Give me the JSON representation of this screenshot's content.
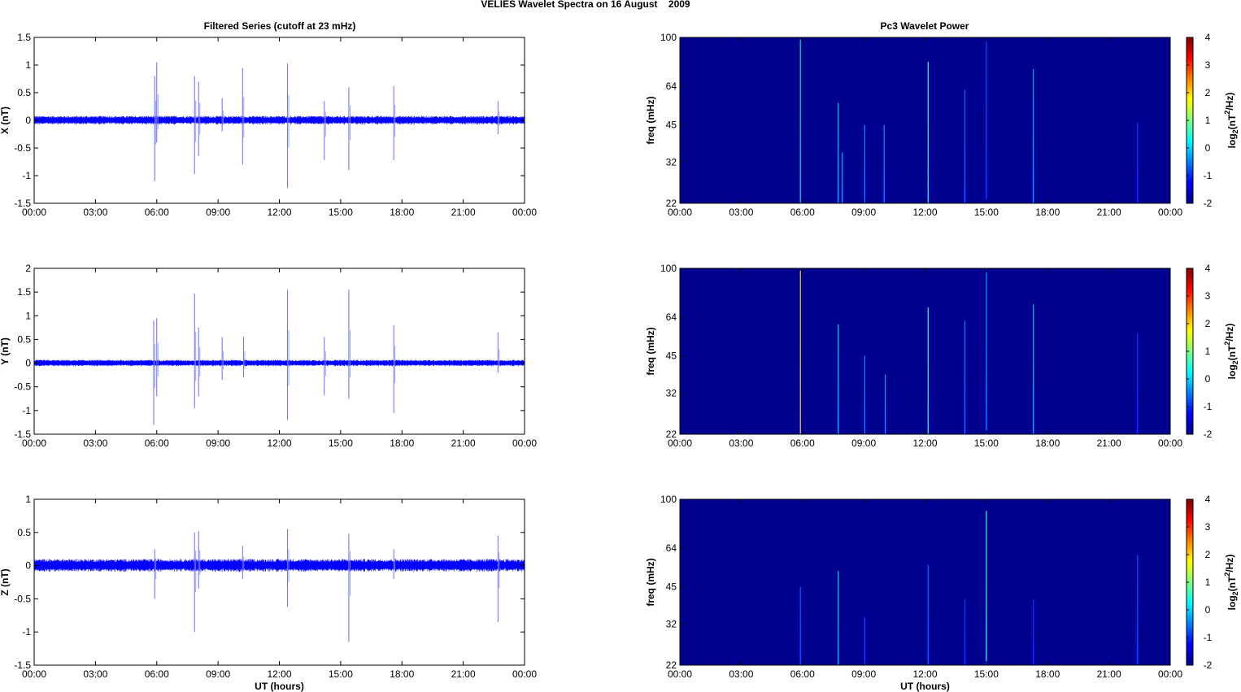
{
  "figure": {
    "title": "VELIES Wavelet Spectra on 16 August    2009",
    "left_title": "Filtered Series (cutoff at 23 mHz)",
    "right_title": "Pc3 Wavelet Power",
    "x_label": "UT (hours)",
    "x_ticks": [
      "00:00",
      "03:00",
      "06:00",
      "09:00",
      "12:00",
      "15:00",
      "18:00",
      "21:00",
      "00:00"
    ],
    "freq_label": "freq (mHz)",
    "freq_ticks": [
      22,
      32,
      45,
      64,
      100
    ],
    "colorbar_label_main": "log",
    "colorbar_label_sub": "2",
    "colorbar_label_unit": "(nT",
    "colorbar_label_sup": "2",
    "colorbar_label_tail": "/Hz)",
    "colorbar_ticks": [
      4,
      3,
      2,
      1,
      0,
      -1,
      -2
    ]
  },
  "chart_data": [
    {
      "type": "line",
      "ylabel": "X (nT)",
      "ylim": [
        -1.5,
        1.5
      ],
      "yticks": [
        1.5,
        1,
        0.5,
        0,
        -0.5,
        -1,
        -1.5
      ],
      "color": "#0000ff",
      "noise_amplitude": 0.08,
      "spikes": [
        {
          "t": 5.9,
          "up": 0.8,
          "down": -1.1
        },
        {
          "t": 6.0,
          "up": 1.05,
          "down": -0.4
        },
        {
          "t": 7.85,
          "up": 0.8,
          "down": -0.97
        },
        {
          "t": 8.05,
          "up": 0.7,
          "down": -0.65
        },
        {
          "t": 9.2,
          "up": 0.4,
          "down": -0.2
        },
        {
          "t": 10.2,
          "up": 0.95,
          "down": -0.8
        },
        {
          "t": 12.4,
          "up": 1.02,
          "down": -1.22
        },
        {
          "t": 14.2,
          "up": 0.35,
          "down": -0.72
        },
        {
          "t": 15.4,
          "up": 0.6,
          "down": -0.9
        },
        {
          "t": 17.6,
          "up": 0.62,
          "down": -0.72
        },
        {
          "t": 22.7,
          "up": 0.35,
          "down": -0.25
        }
      ]
    },
    {
      "type": "line",
      "ylabel": "Y (nT)",
      "ylim": [
        -1.5,
        2
      ],
      "yticks": [
        2,
        1.5,
        1,
        0.5,
        0,
        -0.5,
        -1,
        -1.5
      ],
      "color": "#0000ff",
      "noise_amplitude": 0.07,
      "spikes": [
        {
          "t": 5.85,
          "up": 0.9,
          "down": -1.3
        },
        {
          "t": 6.0,
          "up": 0.95,
          "down": -0.7
        },
        {
          "t": 7.85,
          "up": 1.47,
          "down": -0.95
        },
        {
          "t": 8.05,
          "up": 0.75,
          "down": -0.7
        },
        {
          "t": 9.2,
          "up": 0.55,
          "down": -0.35
        },
        {
          "t": 10.25,
          "up": 0.55,
          "down": -0.3
        },
        {
          "t": 12.4,
          "up": 1.55,
          "down": -1.2
        },
        {
          "t": 14.2,
          "up": 0.55,
          "down": -0.68
        },
        {
          "t": 15.4,
          "up": 1.55,
          "down": -0.75
        },
        {
          "t": 17.6,
          "up": 0.8,
          "down": -1.05
        },
        {
          "t": 22.7,
          "up": 0.65,
          "down": -0.2
        }
      ]
    },
    {
      "type": "line",
      "xlabel": "UT (hours)",
      "ylabel": "Z (nT)",
      "ylim": [
        -1.5,
        1
      ],
      "yticks": [
        1,
        0.5,
        0,
        -0.5,
        -1,
        -1.5
      ],
      "color": "#0000ff",
      "noise_amplitude": 0.1,
      "spikes": [
        {
          "t": 5.9,
          "up": 0.25,
          "down": -0.5
        },
        {
          "t": 7.85,
          "up": 0.5,
          "down": -1.0
        },
        {
          "t": 8.05,
          "up": 0.52,
          "down": -0.35
        },
        {
          "t": 10.2,
          "up": 0.3,
          "down": -0.2
        },
        {
          "t": 12.4,
          "up": 0.55,
          "down": -0.62
        },
        {
          "t": 15.4,
          "up": 0.48,
          "down": -1.15
        },
        {
          "t": 17.6,
          "up": 0.25,
          "down": -0.2
        },
        {
          "t": 22.7,
          "up": 0.45,
          "down": -0.85
        }
      ]
    },
    {
      "type": "heatmap",
      "ylabel": "freq (mHz)",
      "ylim": [
        22,
        100
      ],
      "background": "#00008f",
      "streaks": [
        {
          "t": 5.9,
          "f_top": 98,
          "color": "#00e0a0"
        },
        {
          "t": 7.75,
          "f_top": 55,
          "color": "#00c8d8"
        },
        {
          "t": 7.95,
          "f_top": 35,
          "color": "#00b0ff"
        },
        {
          "t": 9.05,
          "f_top": 45,
          "color": "#0090ff"
        },
        {
          "t": 10.0,
          "f_top": 45,
          "color": "#0090ff"
        },
        {
          "t": 12.15,
          "f_top": 80,
          "color": "#40ffc0"
        },
        {
          "t": 13.95,
          "f_top": 62,
          "color": "#0070ff"
        },
        {
          "t": 15.0,
          "f_top": 100,
          "color": "#0050ff"
        },
        {
          "t": 17.3,
          "f_top": 75,
          "color": "#00a8ff"
        },
        {
          "t": 22.4,
          "f_top": 46,
          "color": "#0040ff"
        }
      ]
    },
    {
      "type": "heatmap",
      "ylabel": "freq (mHz)",
      "ylim": [
        22,
        100
      ],
      "background": "#00008f",
      "streaks": [
        {
          "t": 5.9,
          "f_top": 98,
          "color": "#ffd000"
        },
        {
          "t": 7.75,
          "f_top": 60,
          "color": "#00d0e0"
        },
        {
          "t": 9.05,
          "f_top": 45,
          "color": "#0090ff"
        },
        {
          "t": 10.05,
          "f_top": 38,
          "color": "#00a0ff"
        },
        {
          "t": 12.15,
          "f_top": 70,
          "color": "#40ffc0"
        },
        {
          "t": 13.95,
          "f_top": 62,
          "color": "#0080ff"
        },
        {
          "t": 15.0,
          "f_top": 100,
          "color": "#00a0ff"
        },
        {
          "t": 17.3,
          "f_top": 72,
          "color": "#00c0e0"
        },
        {
          "t": 22.4,
          "f_top": 55,
          "color": "#0040ff"
        }
      ]
    },
    {
      "type": "heatmap",
      "xlabel": "UT (hours)",
      "ylabel": "freq (mHz)",
      "ylim": [
        22,
        100
      ],
      "background": "#00008f",
      "streaks": [
        {
          "t": 5.9,
          "f_top": 45,
          "color": "#0060ff"
        },
        {
          "t": 7.75,
          "f_top": 52,
          "color": "#00d8c0"
        },
        {
          "t": 9.05,
          "f_top": 34,
          "color": "#0050ff"
        },
        {
          "t": 12.15,
          "f_top": 55,
          "color": "#0070ff"
        },
        {
          "t": 13.95,
          "f_top": 40,
          "color": "#0040ff"
        },
        {
          "t": 15.0,
          "f_top": 90,
          "color": "#40ffb0"
        },
        {
          "t": 17.3,
          "f_top": 40,
          "color": "#0040ff"
        },
        {
          "t": 22.4,
          "f_top": 60,
          "color": "#0060ff"
        }
      ]
    }
  ]
}
